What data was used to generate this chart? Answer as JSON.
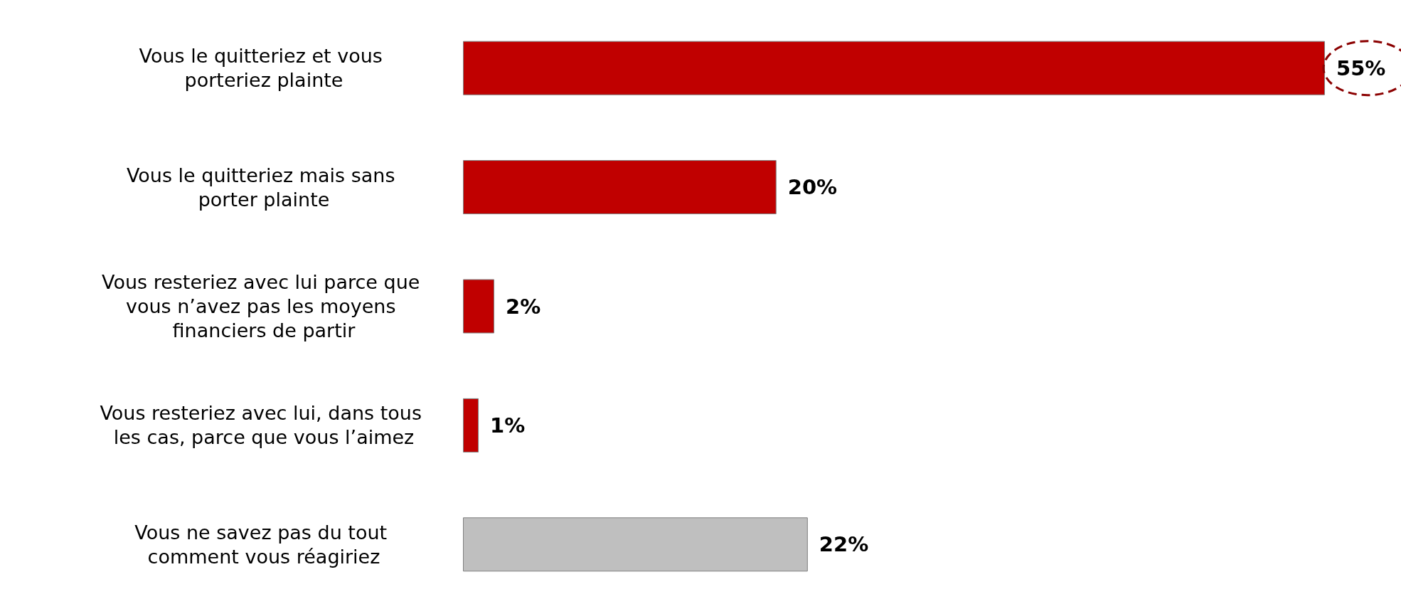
{
  "chart_data": {
    "type": "bar",
    "orientation": "horizontal",
    "categories": [
      "Vous le quitteriez et vous porteriez plainte",
      "Vous le quitteriez mais sans porter plainte",
      "Vous resteriez avec lui parce que vous n’avez pas les moyens financiers de partir",
      "Vous resteriez avec lui, dans tous les cas, parce que vous l’aimez",
      "Vous ne savez pas du tout comment vous réagiriez"
    ],
    "values": [
      55,
      20,
      2,
      1,
      22
    ],
    "colors": [
      "#c00000",
      "#c00000",
      "#c00000",
      "#c00000",
      "#bfbfbf"
    ],
    "value_labels": [
      "55%",
      "20%",
      "2%",
      "1%",
      "22%"
    ]
  }
}
